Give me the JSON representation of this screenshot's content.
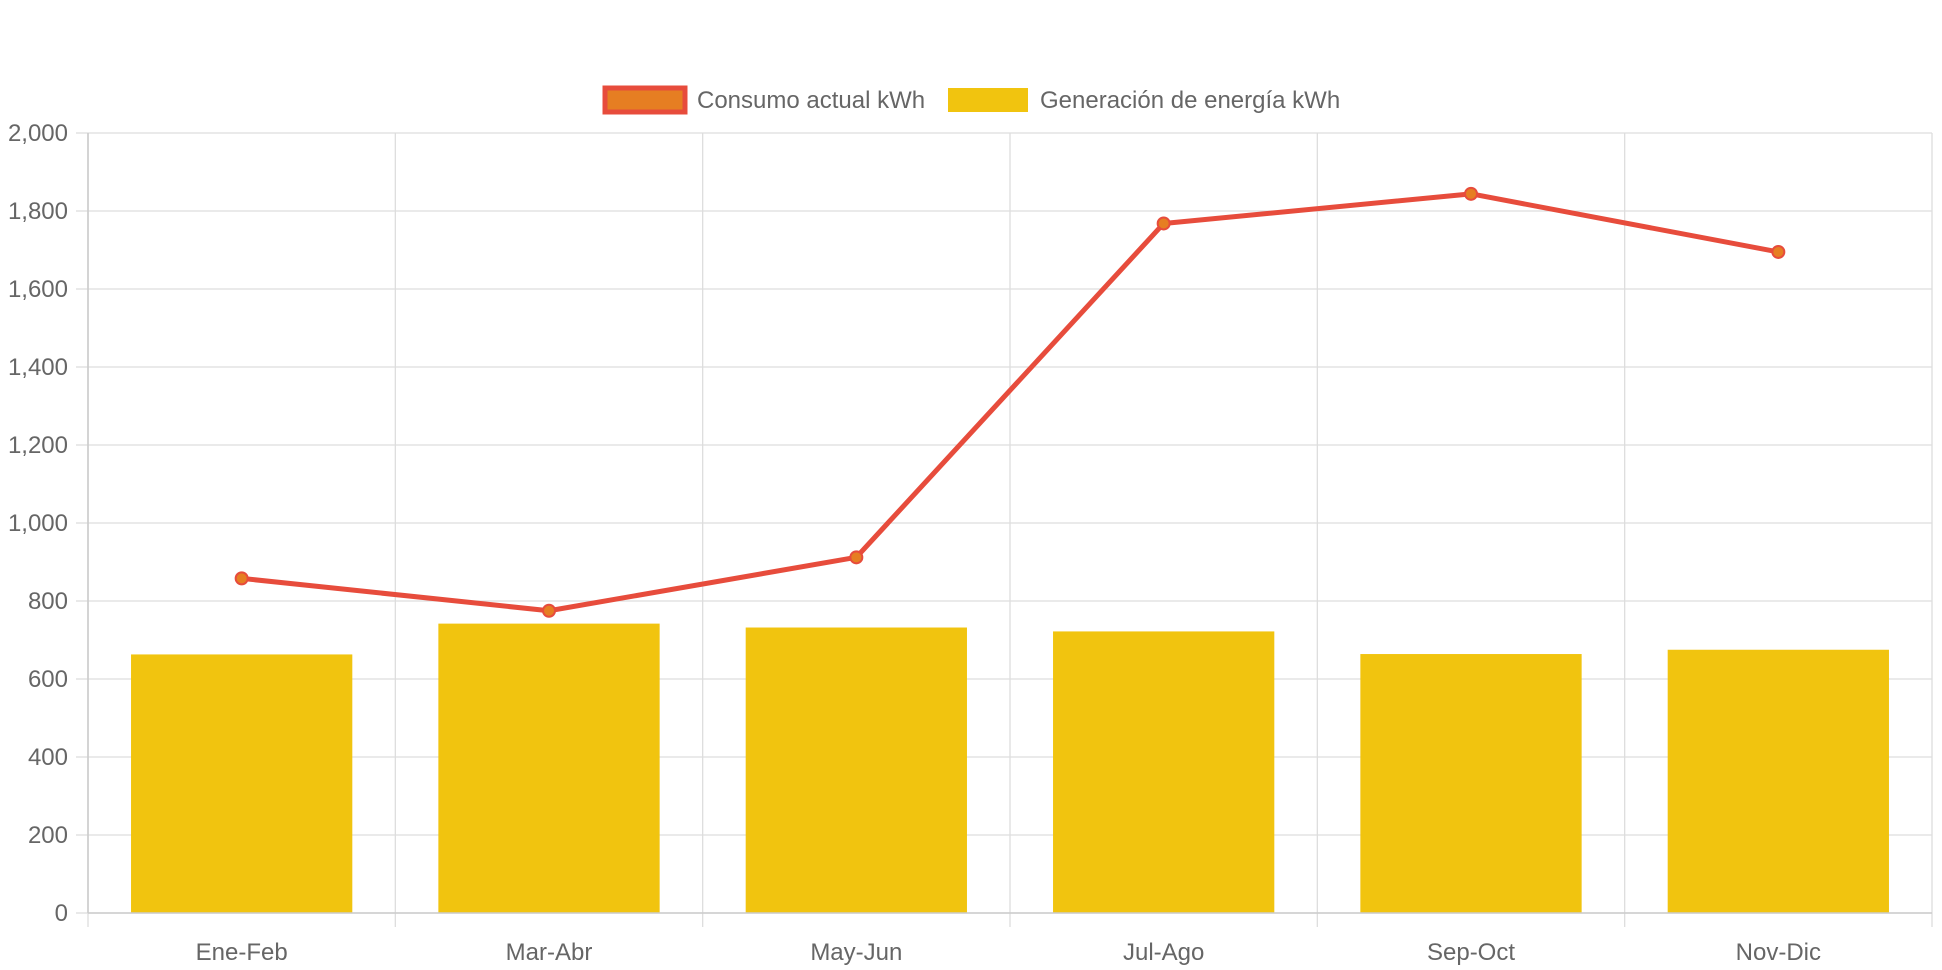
{
  "chart_data": {
    "type": "bar",
    "categories": [
      "Ene-Feb",
      "Mar-Abr",
      "May-Jun",
      "Jul-Ago",
      "Sep-Oct",
      "Nov-Dic"
    ],
    "series": [
      {
        "name": "Consumo actual kWh",
        "type": "line",
        "values": [
          858,
          775,
          912,
          1768,
          1844,
          1695
        ],
        "color": "#e74c3c",
        "point_color": "#e67e22"
      },
      {
        "name": "Generación de energía kWh",
        "type": "bar",
        "values": [
          663,
          742,
          732,
          722,
          664,
          675
        ],
        "color": "#f1c40f"
      }
    ],
    "ylim": [
      0,
      2000
    ],
    "yticks": [
      0,
      200,
      400,
      600,
      800,
      1000,
      1200,
      1400,
      1600,
      1800,
      2000
    ],
    "ytick_labels": [
      "0",
      "200",
      "400",
      "600",
      "800",
      "1,000",
      "1,200",
      "1,400",
      "1,600",
      "1,800",
      "2,000"
    ],
    "title": "",
    "xlabel": "",
    "ylabel": "",
    "grid": true,
    "legend_position": "top-center",
    "grid_color": "#dddddd",
    "axis_text_color": "#666666"
  }
}
